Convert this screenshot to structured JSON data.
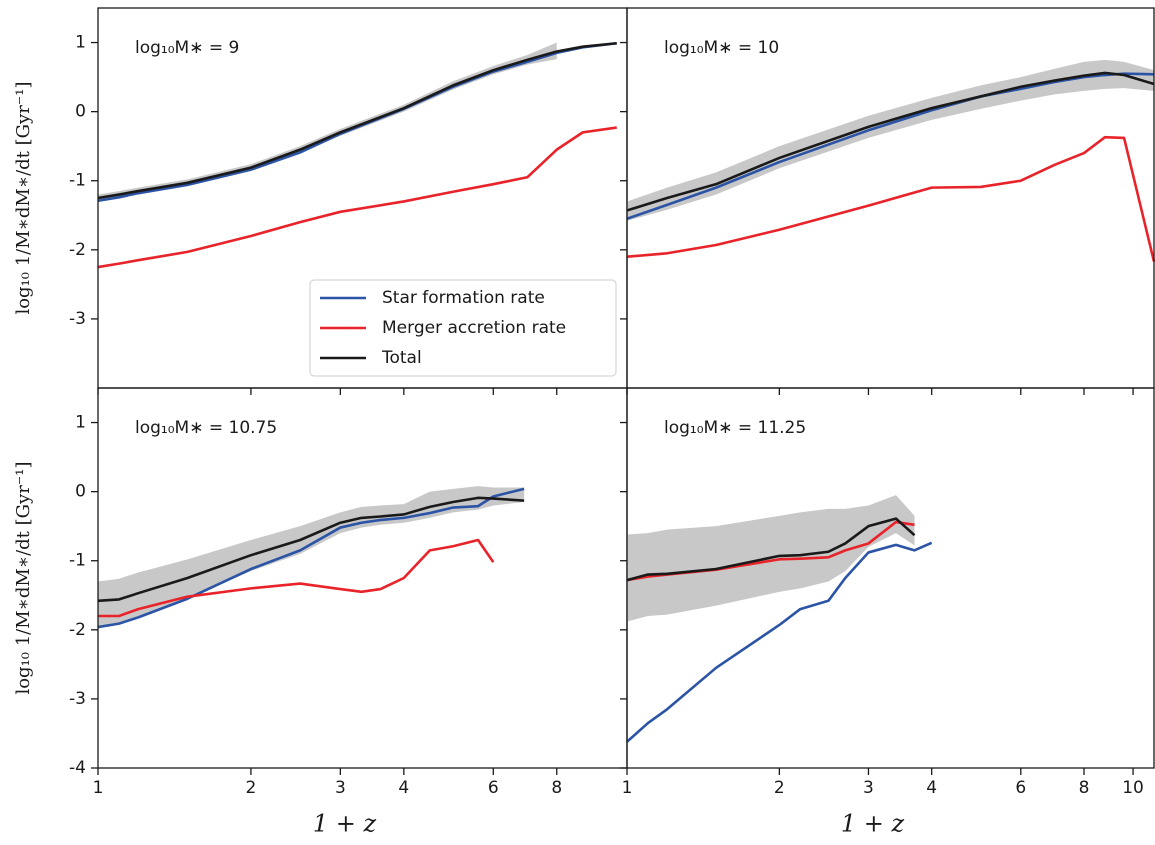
{
  "chart_data": [
    {
      "type": "line",
      "annotation": "log₁₀M∗ = 9",
      "ylabel": "log₁₀ 1/M∗dM∗/dt [Gyr⁻¹]",
      "x": [
        1,
        1.1,
        1.2,
        1.5,
        2,
        2.5,
        3,
        4,
        5,
        6,
        7,
        8,
        9,
        10.5
      ],
      "xlim": [
        1,
        11
      ],
      "xscale": "log",
      "ylim": [
        -4,
        1.5
      ],
      "yticks": [
        -3,
        -2,
        -1,
        0,
        1
      ],
      "legend": "lower right",
      "band_color": "#c8c8c8",
      "band_lower": [
        -1.3,
        -1.25,
        -1.2,
        -1.08,
        -0.86,
        -0.6,
        -0.35,
        0.0,
        0.32,
        0.54,
        0.68,
        0.76,
        null,
        null
      ],
      "band_upper": [
        -1.2,
        -1.15,
        -1.1,
        -0.98,
        -0.76,
        -0.5,
        -0.25,
        0.1,
        0.44,
        0.66,
        0.82,
        1.0,
        null,
        null
      ],
      "series": [
        {
          "name": "Star formation rate",
          "color": "#2b54a6",
          "values": [
            -1.29,
            -1.24,
            -1.18,
            -1.06,
            -0.84,
            -0.59,
            -0.32,
            0.04,
            0.36,
            0.58,
            0.72,
            0.85,
            0.93,
            0.99
          ]
        },
        {
          "name": "Merger accretion rate",
          "color": "#e8232a",
          "values": [
            -2.25,
            -2.2,
            -2.15,
            -2.03,
            -1.8,
            -1.6,
            -1.45,
            -1.3,
            -1.16,
            -1.05,
            -0.95,
            -0.55,
            -0.3,
            -0.23
          ]
        },
        {
          "name": "Total",
          "color": "#1a1a1a",
          "values": [
            -1.25,
            -1.2,
            -1.15,
            -1.03,
            -0.81,
            -0.55,
            -0.3,
            0.05,
            0.38,
            0.6,
            0.75,
            0.87,
            0.94,
            0.99
          ]
        }
      ]
    },
    {
      "type": "line",
      "annotation": "log₁₀M∗ = 10",
      "x": [
        1,
        1.2,
        1.5,
        2,
        3,
        4,
        5,
        6,
        7,
        8,
        8.8,
        9.6,
        11
      ],
      "xlim": [
        1,
        11
      ],
      "xscale": "log",
      "band_color": "#c8c8c8",
      "band_lower": [
        -1.58,
        -1.42,
        -1.2,
        -0.82,
        -0.38,
        -0.12,
        0.04,
        0.16,
        0.25,
        0.3,
        0.33,
        0.34,
        0.3
      ],
      "band_upper": [
        -1.3,
        -1.1,
        -0.88,
        -0.5,
        -0.06,
        0.2,
        0.38,
        0.5,
        0.62,
        0.72,
        0.75,
        0.72,
        0.6
      ],
      "series": [
        {
          "name": "Star formation rate",
          "color": "#2b54a6",
          "values": [
            -1.55,
            -1.35,
            -1.1,
            -0.73,
            -0.27,
            0.02,
            0.22,
            0.33,
            0.43,
            0.5,
            0.53,
            0.55,
            0.54
          ]
        },
        {
          "name": "Merger accretion rate",
          "color": "#e8232a",
          "values": [
            -2.1,
            -2.05,
            -1.93,
            -1.71,
            -1.36,
            -1.1,
            -1.09,
            -1.0,
            -0.77,
            -0.6,
            -0.37,
            -0.38,
            -2.17
          ]
        },
        {
          "name": "Total",
          "color": "#1a1a1a",
          "values": [
            -1.43,
            -1.25,
            -1.05,
            -0.67,
            -0.22,
            0.05,
            0.22,
            0.36,
            0.45,
            0.52,
            0.56,
            0.53,
            0.4
          ]
        }
      ]
    },
    {
      "type": "line",
      "annotation": "log₁₀M∗ = 10.75",
      "ylabel": "log₁₀ 1/M∗dM∗/dt [Gyr⁻¹]",
      "xlabel": "1 + z",
      "x": [
        1,
        1.1,
        1.2,
        1.5,
        2,
        2.5,
        3,
        3.3,
        3.6,
        4,
        4.5,
        5,
        5.6,
        6,
        6.9
      ],
      "xlim": [
        1,
        11
      ],
      "xscale": "log",
      "ylim": [
        -4,
        1.5
      ],
      "yticks": [
        -4,
        -3,
        -2,
        -1,
        0,
        1
      ],
      "xticks": [
        1,
        2,
        3,
        4,
        6,
        8
      ],
      "band_color": "#c8c8c8",
      "band_lower": [
        -1.95,
        -1.9,
        -1.8,
        -1.55,
        -1.15,
        -0.9,
        -0.6,
        -0.52,
        -0.48,
        -0.45,
        -0.38,
        -0.3,
        -0.26,
        -0.2,
        -0.15
      ],
      "band_upper": [
        -1.3,
        -1.26,
        -1.17,
        -0.98,
        -0.7,
        -0.5,
        -0.3,
        -0.22,
        -0.2,
        -0.18,
        0.0,
        0.04,
        0.08,
        0.06,
        0.06
      ],
      "series": [
        {
          "name": "Star formation rate",
          "color": "#2b54a6",
          "values": [
            -1.96,
            -1.91,
            -1.82,
            -1.55,
            -1.12,
            -0.85,
            -0.52,
            -0.45,
            -0.41,
            -0.38,
            -0.31,
            -0.23,
            -0.21,
            -0.07,
            0.04
          ]
        },
        {
          "name": "Merger accretion rate",
          "color": "#e8232a",
          "values": [
            -1.8,
            -1.8,
            -1.7,
            -1.52,
            -1.4,
            -1.33,
            -1.41,
            -1.45,
            -1.41,
            -1.25,
            -0.85,
            -0.79,
            -0.7,
            -1.02,
            null
          ]
        },
        {
          "name": "Total",
          "color": "#1a1a1a",
          "values": [
            -1.58,
            -1.56,
            -1.47,
            -1.25,
            -0.92,
            -0.7,
            -0.45,
            -0.38,
            -0.36,
            -0.33,
            -0.22,
            -0.15,
            -0.09,
            -0.1,
            -0.13
          ]
        }
      ]
    },
    {
      "type": "line",
      "annotation": "log₁₀M∗ = 11.25",
      "xlabel": "1 + z",
      "x": [
        1,
        1.1,
        1.2,
        1.5,
        2,
        2.2,
        2.5,
        2.7,
        3,
        3.4,
        3.7,
        4
      ],
      "xlim": [
        1,
        11
      ],
      "xscale": "log",
      "xticks": [
        1,
        2,
        3,
        4,
        6,
        8,
        10
      ],
      "band_color": "#c8c8c8",
      "band_lower": [
        -1.88,
        -1.8,
        -1.78,
        -1.65,
        -1.45,
        -1.4,
        -1.3,
        -1.15,
        -0.8,
        -0.6,
        -0.78,
        null
      ],
      "band_upper": [
        -0.62,
        -0.6,
        -0.55,
        -0.5,
        -0.35,
        -0.3,
        -0.25,
        -0.25,
        -0.2,
        -0.05,
        -0.35,
        null
      ],
      "series": [
        {
          "name": "Star formation rate",
          "color": "#2b54a6",
          "values": [
            -3.62,
            -3.35,
            -3.15,
            -2.55,
            -1.93,
            -1.7,
            -1.58,
            -1.25,
            -0.88,
            -0.77,
            -0.85,
            -0.74
          ]
        },
        {
          "name": "Merger accretion rate",
          "color": "#e8232a",
          "values": [
            -1.28,
            -1.23,
            -1.2,
            -1.13,
            -0.98,
            -0.97,
            -0.95,
            -0.85,
            -0.75,
            -0.44,
            -0.48,
            null
          ]
        },
        {
          "name": "Total",
          "color": "#1a1a1a",
          "values": [
            -1.28,
            -1.2,
            -1.19,
            -1.12,
            -0.93,
            -0.92,
            -0.87,
            -0.75,
            -0.5,
            -0.39,
            -0.63,
            null
          ]
        }
      ]
    }
  ]
}
